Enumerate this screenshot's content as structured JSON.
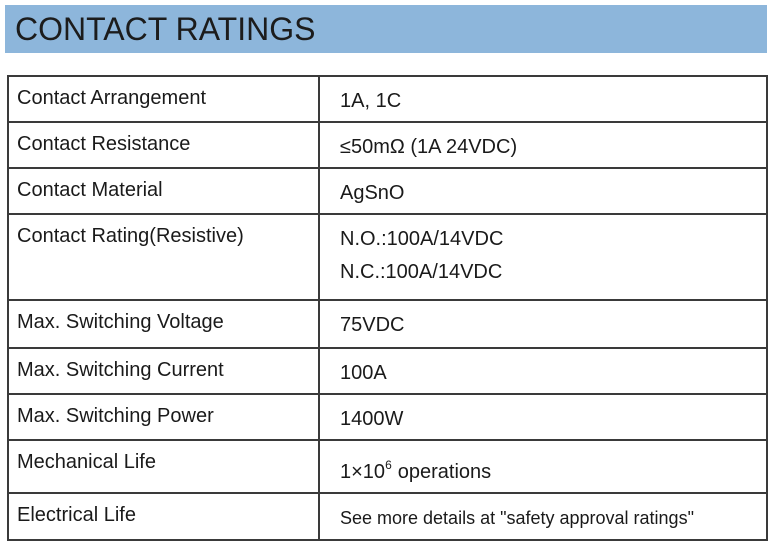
{
  "header": {
    "title": "CONTACT RATINGS"
  },
  "table": {
    "rows": [
      {
        "label": "Contact Arrangement",
        "lines": [
          "1A, 1C"
        ]
      },
      {
        "label": "Contact Resistance",
        "lines": [
          "≤50mΩ (1A 24VDC)"
        ]
      },
      {
        "label": "Contact Material",
        "lines": [
          "AgSnO"
        ]
      },
      {
        "label": "Contact Rating(Resistive)",
        "lines": [
          "N.O.:100A/14VDC",
          "N.C.:100A/14VDC"
        ]
      },
      {
        "label": "Max. Switching Voltage",
        "lines": [
          "75VDC"
        ]
      },
      {
        "label": "Max. Switching Current",
        "lines": [
          "100A"
        ]
      },
      {
        "label": "Max. Switching Power",
        "lines": [
          "1400W"
        ]
      },
      {
        "label": "Mechanical Life",
        "power": {
          "base": "1×10",
          "exponent": "6",
          "suffix": "operations"
        }
      },
      {
        "label": "Electrical Life",
        "note": "See more details at \"safety approval ratings\""
      }
    ]
  }
}
